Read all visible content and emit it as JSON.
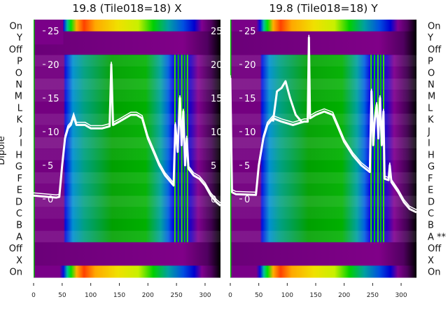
{
  "chart_data": [
    {
      "type": "heatmap",
      "title": "19.8 (Tile018=18) X",
      "ylabel": "Dipole",
      "row_labels": [
        "On",
        "Y",
        "Off",
        "P",
        "O",
        "N",
        "M",
        "L",
        "K",
        "J",
        "I",
        "H",
        "G",
        "F",
        "E",
        "D",
        "C",
        "B",
        "A",
        "Off",
        "X",
        "On"
      ],
      "row_kinds": [
        "on",
        "off",
        "off",
        "dip",
        "dip",
        "dip",
        "dip",
        "dip",
        "dip",
        "dip",
        "dip",
        "dip",
        "dip",
        "dip",
        "dip",
        "dip",
        "dip",
        "dip",
        "dip",
        "off",
        "off",
        "on"
      ],
      "x_ticks": [
        "0",
        "50",
        "100",
        "150",
        "200",
        "250",
        "300"
      ],
      "x_tick_values": [
        0,
        50,
        100,
        150,
        200,
        250,
        300
      ],
      "xlim": [
        0,
        327
      ],
      "overlay_y_ticks": [
        "0",
        "5",
        "10",
        "15",
        "20",
        "25"
      ],
      "overlay_y_tick_values": [
        0,
        5,
        10,
        15,
        20,
        25
      ],
      "series": [
        {
          "name": "X trace",
          "color": "#ffffff",
          "points": [
            [
              0,
              0.5
            ],
            [
              40,
              0.2
            ],
            [
              45,
              0.3
            ],
            [
              50,
              5
            ],
            [
              55,
              9
            ],
            [
              60,
              10.5
            ],
            [
              65,
              11
            ],
            [
              70,
              12.3
            ],
            [
              75,
              11
            ],
            [
              90,
              11
            ],
            [
              100,
              10.5
            ],
            [
              120,
              10.5
            ],
            [
              133,
              10.8
            ],
            [
              136,
              20
            ],
            [
              139,
              11
            ],
            [
              150,
              11.5
            ],
            [
              160,
              12
            ],
            [
              170,
              12.5
            ],
            [
              180,
              12.5
            ],
            [
              190,
              12
            ],
            [
              200,
              9
            ],
            [
              210,
              7
            ],
            [
              220,
              5
            ],
            [
              230,
              3.5
            ],
            [
              240,
              2.5
            ],
            [
              245,
              2
            ],
            [
              248,
              11
            ],
            [
              252,
              7
            ],
            [
              256,
              15
            ],
            [
              259,
              8
            ],
            [
              262,
              13
            ],
            [
              265,
              5
            ],
            [
              268,
              9
            ],
            [
              271,
              4.5
            ],
            [
              280,
              3.5
            ],
            [
              290,
              3
            ],
            [
              300,
              2
            ],
            [
              310,
              0.5
            ],
            [
              320,
              -0.5
            ],
            [
              327,
              -1
            ]
          ]
        }
      ]
    },
    {
      "type": "heatmap",
      "title": "19.8 (Tile018=18) Y",
      "row_labels": [
        "On",
        "Y",
        "Off",
        "P",
        "O",
        "N",
        "M",
        "L",
        "K",
        "J",
        "I",
        "H",
        "G",
        "F",
        "E",
        "D",
        "C",
        "B",
        "A **",
        "Off",
        "X",
        "On"
      ],
      "row_kinds": [
        "on",
        "off",
        "off",
        "dip",
        "dip",
        "dip",
        "dip",
        "dip",
        "dip",
        "dip",
        "dip",
        "dip",
        "dip",
        "dip",
        "dip",
        "dip",
        "dip",
        "dip",
        "dip",
        "off",
        "off",
        "on"
      ],
      "x_ticks": [
        "0",
        "50",
        "100",
        "150",
        "200",
        "250",
        "300"
      ],
      "x_tick_values": [
        0,
        50,
        100,
        150,
        200,
        250,
        300
      ],
      "xlim": [
        0,
        327
      ],
      "overlay_y_ticks": [
        "0",
        "5",
        "10",
        "15",
        "20",
        "25"
      ],
      "overlay_y_tick_values": [
        0,
        5,
        10,
        15,
        20,
        25
      ],
      "series": [
        {
          "name": "Y trace",
          "color": "#ffffff",
          "points": [
            [
              0,
              18
            ],
            [
              3,
              1
            ],
            [
              10,
              0.7
            ],
            [
              45,
              0.6
            ],
            [
              50,
              5
            ],
            [
              58,
              9
            ],
            [
              65,
              11
            ],
            [
              75,
              12
            ],
            [
              90,
              11.5
            ],
            [
              110,
              11
            ],
            [
              130,
              11.5
            ],
            [
              136,
              11.5
            ],
            [
              138,
              24
            ],
            [
              140,
              12
            ],
            [
              150,
              12.5
            ],
            [
              165,
              13
            ],
            [
              180,
              12.5
            ],
            [
              190,
              10.5
            ],
            [
              200,
              8.5
            ],
            [
              215,
              6.5
            ],
            [
              230,
              5
            ],
            [
              245,
              4
            ],
            [
              248,
              16
            ],
            [
              251,
              8
            ],
            [
              254,
              12
            ],
            [
              257,
              14
            ],
            [
              260,
              9
            ],
            [
              263,
              15
            ],
            [
              266,
              8
            ],
            [
              269,
              13
            ],
            [
              271,
              3
            ],
            [
              278,
              2.8
            ],
            [
              280,
              5
            ],
            [
              283,
              2.5
            ],
            [
              295,
              1
            ],
            [
              305,
              -0.5
            ],
            [
              315,
              -1.5
            ],
            [
              327,
              -2
            ]
          ]
        },
        {
          "name": "Y trace bump",
          "color": "#ffffff",
          "points": [
            [
              75,
              11.5
            ],
            [
              82,
              16
            ],
            [
              90,
              16.5
            ],
            [
              97,
              17.5
            ],
            [
              105,
              15
            ],
            [
              115,
              12.5
            ],
            [
              125,
              11.5
            ]
          ]
        }
      ]
    }
  ]
}
